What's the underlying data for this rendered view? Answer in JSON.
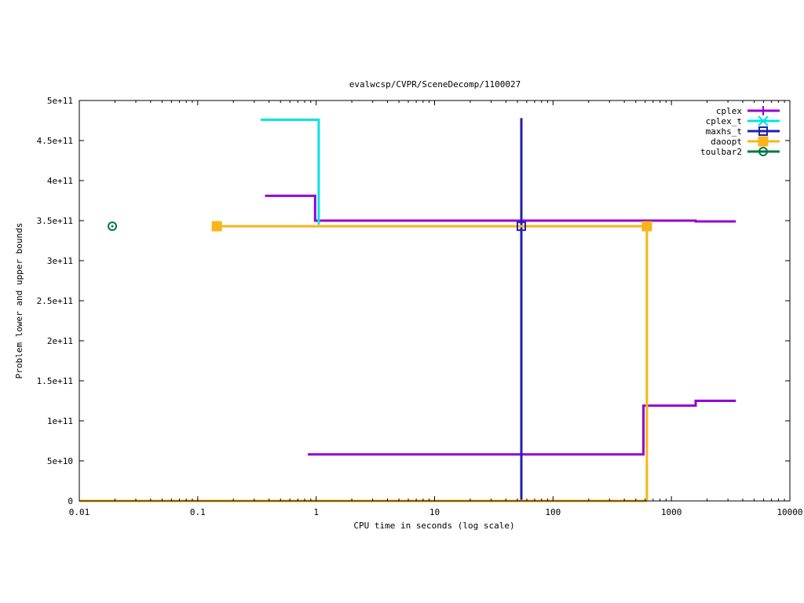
{
  "chart_data": {
    "type": "line",
    "title": "evalwcsp/CVPR/SceneDecomp/1100027",
    "xlabel": "CPU time in seconds (log scale)",
    "ylabel": "Problem lower and upper bounds",
    "xscale": "log",
    "xlim": [
      0.01,
      10000
    ],
    "ylim": [
      0,
      500000000000
    ],
    "x_ticks": [
      {
        "v": 0.01,
        "label": "0.01"
      },
      {
        "v": 0.1,
        "label": "0.1"
      },
      {
        "v": 1,
        "label": "1"
      },
      {
        "v": 10,
        "label": "10"
      },
      {
        "v": 100,
        "label": "100"
      },
      {
        "v": 1000,
        "label": "1000"
      },
      {
        "v": 10000,
        "label": "10000"
      }
    ],
    "y_ticks": [
      {
        "v": 0,
        "label": "0"
      },
      {
        "v": 50000000000,
        "label": "5e+10"
      },
      {
        "v": 100000000000,
        "label": "1e+11"
      },
      {
        "v": 150000000000,
        "label": "1.5e+11"
      },
      {
        "v": 200000000000,
        "label": "2e+11"
      },
      {
        "v": 250000000000,
        "label": "2.5e+11"
      },
      {
        "v": 300000000000,
        "label": "3e+11"
      },
      {
        "v": 350000000000,
        "label": "3.5e+11"
      },
      {
        "v": 400000000000,
        "label": "4e+11"
      },
      {
        "v": 450000000000,
        "label": "4.5e+11"
      },
      {
        "v": 500000000000,
        "label": "5e+11"
      }
    ],
    "grid": false,
    "legend_position": "top-right",
    "series": [
      {
        "name": "cplex",
        "color": "#9400d3",
        "marker": "plus",
        "lines": [
          [
            [
              0.37,
              381000000000
            ],
            [
              0.98,
              381000000000
            ],
            [
              0.98,
              350000000000
            ],
            [
              1600,
              350000000000
            ],
            [
              1600,
              349000000000
            ],
            [
              3500,
              349000000000
            ]
          ],
          [
            [
              0.85,
              58000000000
            ],
            [
              580,
              58000000000
            ],
            [
              580,
              119000000000
            ],
            [
              1600,
              119000000000
            ],
            [
              1600,
              125000000000
            ],
            [
              3500,
              125000000000
            ]
          ]
        ],
        "points": []
      },
      {
        "name": "cplex_t",
        "color": "#00e4e4",
        "marker": "x",
        "lines": [
          [
            [
              0.34,
              476000000000
            ],
            [
              1.05,
              476000000000
            ],
            [
              1.05,
              345000000000
            ]
          ]
        ],
        "points": []
      },
      {
        "name": "maxhs_t",
        "color": "#2020b0",
        "marker": "square-open",
        "lines": [
          [
            [
              54,
              478000000000
            ],
            [
              54,
              0
            ]
          ]
        ],
        "points": [
          [
            54,
            343000000000
          ]
        ]
      },
      {
        "name": "daoopt",
        "color": "#f8b418",
        "marker": "square-filled",
        "lines": [
          [
            [
              0.145,
              343000000000
            ],
            [
              620,
              343000000000
            ],
            [
              620,
              0
            ]
          ],
          [
            [
              0.01,
              0
            ],
            [
              620,
              0
            ]
          ]
        ],
        "points": [
          [
            0.145,
            343000000000
          ],
          [
            620,
            343000000000
          ]
        ]
      },
      {
        "name": "toulbar2",
        "color": "#007840",
        "marker": "circle-open",
        "lines": [],
        "points": [
          [
            0.019,
            343000000000
          ]
        ]
      }
    ]
  }
}
